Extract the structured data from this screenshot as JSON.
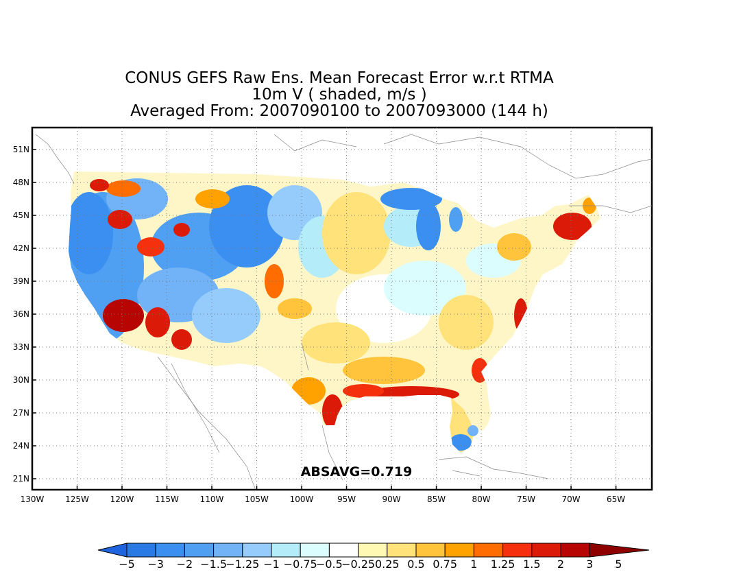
{
  "title": {
    "line1": "CONUS GEFS Raw Ens. Mean Forecast Error w.r.t RTMA",
    "line2": "10m V ( shaded, m/s )",
    "line3": "Averaged From: 2007090100 to 2007093000 (144 h)"
  },
  "annotation": "ABSAVG=0.719",
  "axes": {
    "lon_ticks": [
      "130W",
      "125W",
      "120W",
      "115W",
      "110W",
      "105W",
      "100W",
      "95W",
      "90W",
      "85W",
      "80W",
      "75W",
      "70W",
      "65W"
    ],
    "lat_ticks": [
      "51N",
      "48N",
      "45N",
      "42N",
      "39N",
      "36N",
      "33N",
      "30N",
      "27N",
      "24N",
      "21N"
    ],
    "lon_range": [
      -130,
      -61
    ],
    "lat_range": [
      20,
      53
    ],
    "grid": true
  },
  "colorbar": {
    "labels": [
      "-5",
      "-3",
      "-2",
      "-1.5",
      "-1.25",
      "-1",
      "-0.75",
      "-0.5",
      "-0.25",
      "0.25",
      "0.5",
      "0.75",
      "1",
      "1.25",
      "1.5",
      "2",
      "3",
      "5"
    ],
    "colors": [
      "#1f63dd",
      "#2a7ae6",
      "#3a8ff0",
      "#4f9ff3",
      "#72b2f6",
      "#95ccfb",
      "#b4ecfa",
      "#dcfdfd",
      "#ffffff",
      "#fff9b3",
      "#ffe27a",
      "#ffc43b",
      "#ffa200",
      "#ff6c00",
      "#f4310c",
      "#dc1a08",
      "#b60502",
      "#8e0000"
    ]
  }
}
